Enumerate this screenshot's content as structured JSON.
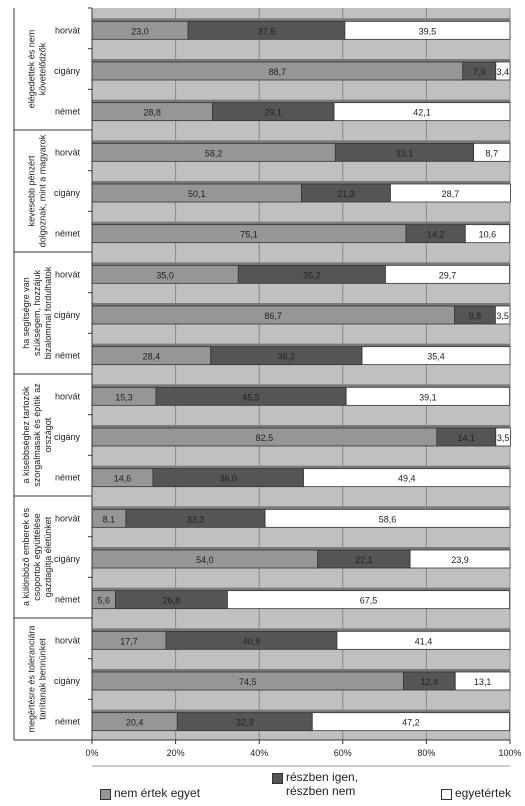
{
  "colors": {
    "nem_ertek_egyet": "#969696",
    "reszben": "#555555",
    "egyetertek": "#ffffff",
    "plot_bg": "#c0c0c0",
    "grid": "#888888"
  },
  "legend": [
    {
      "label": "nem értek egyet",
      "color": "#969696"
    },
    {
      "label": "részben igen,\nrészben nem",
      "color": "#555555"
    },
    {
      "label": "egyetértek",
      "color": "#ffffff"
    }
  ],
  "chart_data": {
    "type": "bar",
    "orientation": "horizontal",
    "stacked": true,
    "xlim": [
      0,
      100
    ],
    "xticks": [
      "0%",
      "20%",
      "40%",
      "60%",
      "80%",
      "100%"
    ],
    "grid": true,
    "legend_position": "bottom",
    "groups": [
      {
        "label": "elégedettek és nem követelődzők",
        "rows": [
          {
            "category": "horvát",
            "values": [
              23.0,
              37.5,
              39.5
            ],
            "labels": [
              "23,0",
              "37,5",
              "39,5"
            ]
          },
          {
            "category": "cigány",
            "values": [
              88.7,
              7.9,
              3.4
            ],
            "labels": [
              "88,7",
              "7,9",
              "3,4"
            ]
          },
          {
            "category": "német",
            "values": [
              28.8,
              29.1,
              42.1
            ],
            "labels": [
              "28,8",
              "29,1",
              "42,1"
            ]
          }
        ]
      },
      {
        "label": "kevesebb pénzért dolgoznak, mint a magyarok",
        "rows": [
          {
            "category": "horvát",
            "values": [
              58.2,
              33.1,
              8.7
            ],
            "labels": [
              "58,2",
              "33,1",
              "8,7"
            ]
          },
          {
            "category": "cigány",
            "values": [
              50.1,
              21.3,
              28.7
            ],
            "labels": [
              "50,1",
              "21,3",
              "28,7"
            ]
          },
          {
            "category": "német",
            "values": [
              75.1,
              14.2,
              10.6
            ],
            "labels": [
              "75,1",
              "14,2",
              "10,6"
            ]
          }
        ]
      },
      {
        "label": "ha segítségre van szükségem, hozzájuk bizalommal fordulhatok",
        "rows": [
          {
            "category": "horvát",
            "values": [
              35.0,
              35.2,
              29.7
            ],
            "labels": [
              "35,0",
              "35,2",
              "29,7"
            ]
          },
          {
            "category": "cigány",
            "values": [
              86.7,
              9.8,
              3.5
            ],
            "labels": [
              "86,7",
              "9,8",
              "3,5"
            ]
          },
          {
            "category": "német",
            "values": [
              28.4,
              36.2,
              35.4
            ],
            "labels": [
              "28,4",
              "36,2",
              "35,4"
            ]
          }
        ]
      },
      {
        "label": "a kisebbséghez tartozók szorgalmasak és építik az országot",
        "rows": [
          {
            "category": "horvát",
            "values": [
              15.3,
              45.5,
              39.1
            ],
            "labels": [
              "15,3",
              "45,5",
              "39,1"
            ]
          },
          {
            "category": "cigány",
            "values": [
              82.5,
              14.1,
              3.5
            ],
            "labels": [
              "82,5",
              "14,1",
              "3,5"
            ]
          },
          {
            "category": "német",
            "values": [
              14.6,
              36.0,
              49.4
            ],
            "labels": [
              "14,6",
              "36,0",
              "49,4"
            ]
          }
        ]
      },
      {
        "label": "a különböző emberek és csoportok együttélése gazdagítja életünket",
        "rows": [
          {
            "category": "horvát",
            "values": [
              8.1,
              33.3,
              58.6
            ],
            "labels": [
              "8,1",
              "33,3",
              "58,6"
            ]
          },
          {
            "category": "cigány",
            "values": [
              54.0,
              22.1,
              23.9
            ],
            "labels": [
              "54,0",
              "22,1",
              "23,9"
            ]
          },
          {
            "category": "német",
            "values": [
              5.6,
              26.8,
              67.5
            ],
            "labels": [
              "5,6",
              "26,8",
              "67,5"
            ]
          }
        ]
      },
      {
        "label": "megértésre és toleranciára tanítanak bennünket",
        "rows": [
          {
            "category": "horvát",
            "values": [
              17.7,
              40.9,
              41.4
            ],
            "labels": [
              "17,7",
              "40,9",
              "41,4"
            ]
          },
          {
            "category": "cigány",
            "values": [
              74.5,
              12.4,
              13.1
            ],
            "labels": [
              "74,5",
              "12,4",
              "13,1"
            ]
          },
          {
            "category": "német",
            "values": [
              20.4,
              32.3,
              47.2
            ],
            "labels": [
              "20,4",
              "32,3",
              "47,2"
            ]
          }
        ]
      }
    ]
  }
}
